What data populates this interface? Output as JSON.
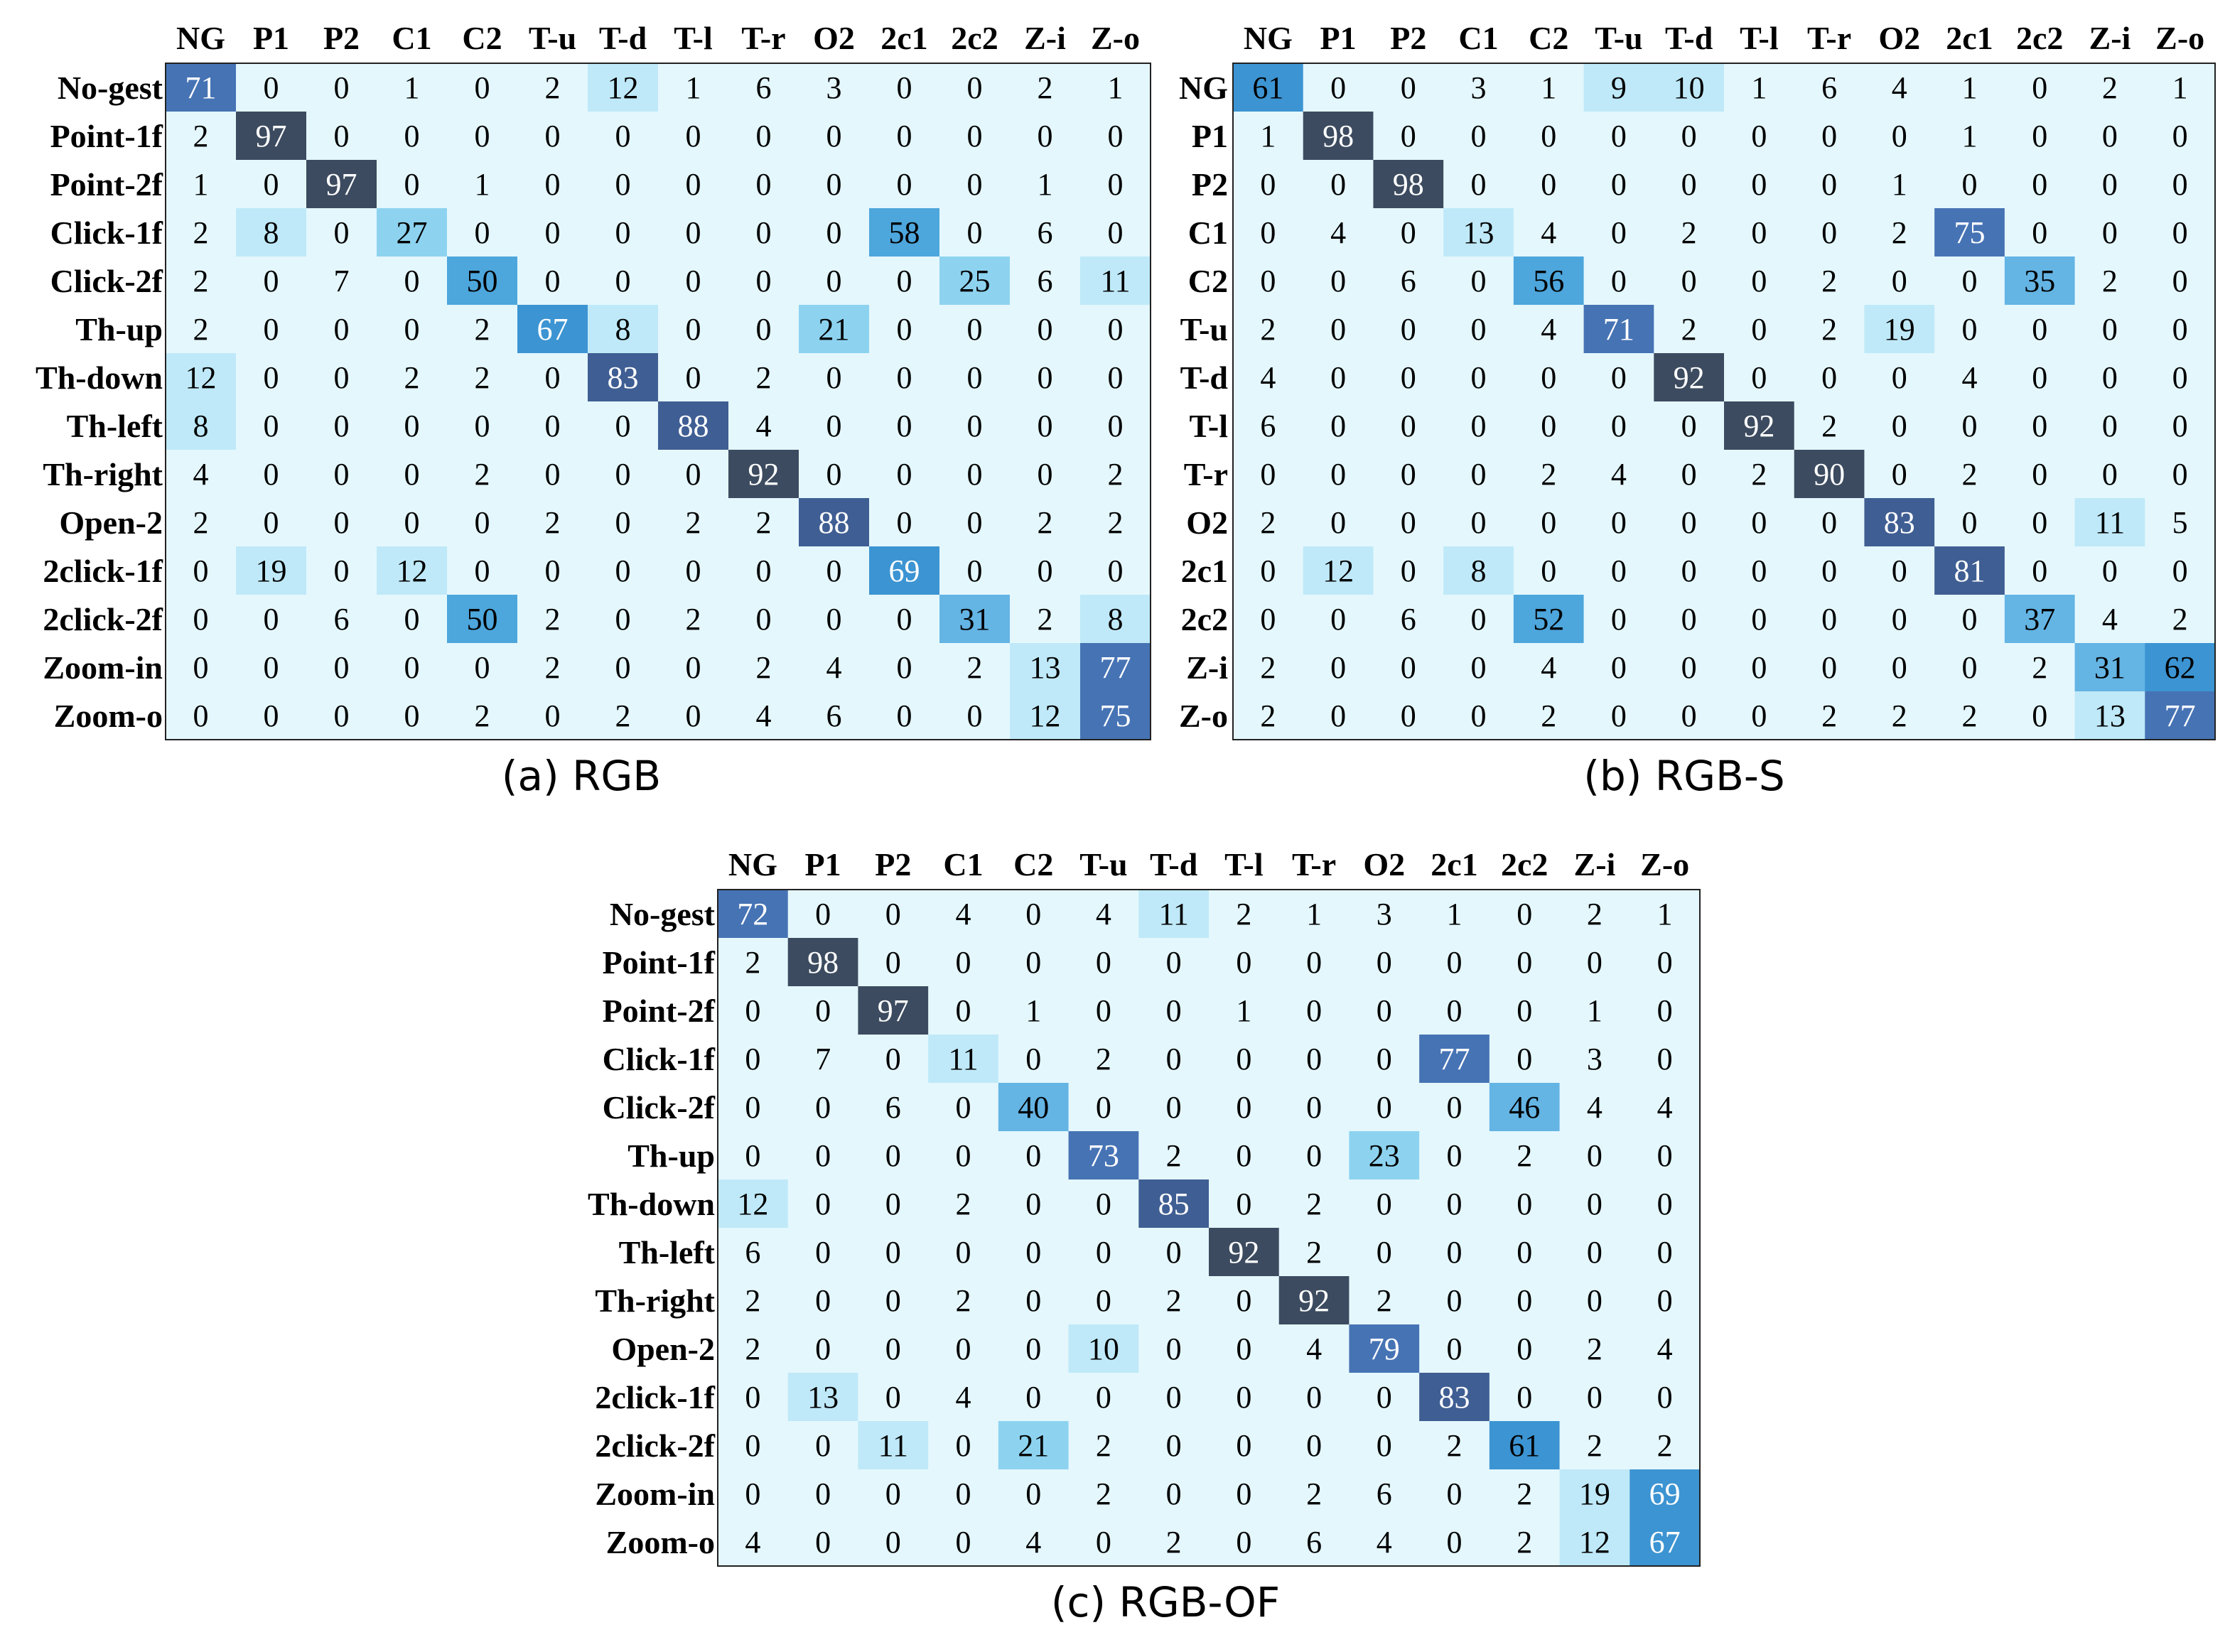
{
  "chart_data": [
    {
      "type": "heatmap",
      "caption": "(a) RGB",
      "col_labels": [
        "NG",
        "P1",
        "P2",
        "C1",
        "C2",
        "T-u",
        "T-d",
        "T-l",
        "T-r",
        "O2",
        "2c1",
        "2c2",
        "Z-i",
        "Z-o"
      ],
      "row_labels": [
        "No-gest",
        "Point-1f",
        "Point-2f",
        "Click-1f",
        "Click-2f",
        "Th-up",
        "Th-down",
        "Th-left",
        "Th-right",
        "Open-2",
        "2click-1f",
        "2click-2f",
        "Zoom-in",
        "Zoom-o"
      ],
      "values": [
        [
          71,
          0,
          0,
          1,
          0,
          2,
          12,
          1,
          6,
          3,
          0,
          0,
          2,
          1
        ],
        [
          2,
          97,
          0,
          0,
          0,
          0,
          0,
          0,
          0,
          0,
          0,
          0,
          0,
          0
        ],
        [
          1,
          0,
          97,
          0,
          1,
          0,
          0,
          0,
          0,
          0,
          0,
          0,
          1,
          0
        ],
        [
          2,
          8,
          0,
          27,
          0,
          0,
          0,
          0,
          0,
          0,
          58,
          0,
          6,
          0
        ],
        [
          2,
          0,
          7,
          0,
          50,
          0,
          0,
          0,
          0,
          0,
          0,
          25,
          6,
          11
        ],
        [
          2,
          0,
          0,
          0,
          2,
          67,
          8,
          0,
          0,
          21,
          0,
          0,
          0,
          0
        ],
        [
          12,
          0,
          0,
          2,
          2,
          0,
          83,
          0,
          2,
          0,
          0,
          0,
          0,
          0
        ],
        [
          8,
          0,
          0,
          0,
          0,
          0,
          0,
          88,
          4,
          0,
          0,
          0,
          0,
          0
        ],
        [
          4,
          0,
          0,
          0,
          2,
          0,
          0,
          0,
          92,
          0,
          0,
          0,
          0,
          2
        ],
        [
          2,
          0,
          0,
          0,
          0,
          2,
          0,
          2,
          2,
          88,
          0,
          0,
          2,
          2
        ],
        [
          0,
          19,
          0,
          12,
          0,
          0,
          0,
          0,
          0,
          0,
          69,
          0,
          0,
          0
        ],
        [
          0,
          0,
          6,
          0,
          50,
          2,
          0,
          2,
          0,
          0,
          0,
          31,
          2,
          8
        ],
        [
          0,
          0,
          0,
          0,
          0,
          2,
          0,
          0,
          2,
          4,
          0,
          2,
          13,
          77
        ],
        [
          0,
          0,
          0,
          0,
          2,
          0,
          2,
          0,
          4,
          6,
          0,
          0,
          12,
          75
        ]
      ]
    },
    {
      "type": "heatmap",
      "caption": "(b) RGB-S",
      "col_labels": [
        "NG",
        "P1",
        "P2",
        "C1",
        "C2",
        "T-u",
        "T-d",
        "T-l",
        "T-r",
        "O2",
        "2c1",
        "2c2",
        "Z-i",
        "Z-o"
      ],
      "row_labels": [
        "NG",
        "P1",
        "P2",
        "C1",
        "C2",
        "T-u",
        "T-d",
        "T-l",
        "T-r",
        "O2",
        "2c1",
        "2c2",
        "Z-i",
        "Z-o"
      ],
      "values": [
        [
          61,
          0,
          0,
          3,
          1,
          9,
          10,
          1,
          6,
          4,
          1,
          0,
          2,
          1
        ],
        [
          1,
          98,
          0,
          0,
          0,
          0,
          0,
          0,
          0,
          0,
          1,
          0,
          0,
          0
        ],
        [
          0,
          0,
          98,
          0,
          0,
          0,
          0,
          0,
          0,
          1,
          0,
          0,
          0,
          0
        ],
        [
          0,
          4,
          0,
          13,
          4,
          0,
          2,
          0,
          0,
          2,
          75,
          0,
          0,
          0
        ],
        [
          0,
          0,
          6,
          0,
          56,
          0,
          0,
          0,
          2,
          0,
          0,
          35,
          2,
          0
        ],
        [
          2,
          0,
          0,
          0,
          4,
          71,
          2,
          0,
          2,
          19,
          0,
          0,
          0,
          0
        ],
        [
          4,
          0,
          0,
          0,
          0,
          0,
          92,
          0,
          0,
          0,
          4,
          0,
          0,
          0
        ],
        [
          6,
          0,
          0,
          0,
          0,
          0,
          0,
          92,
          2,
          0,
          0,
          0,
          0,
          0
        ],
        [
          0,
          0,
          0,
          0,
          2,
          4,
          0,
          2,
          90,
          0,
          2,
          0,
          0,
          0
        ],
        [
          2,
          0,
          0,
          0,
          0,
          0,
          0,
          0,
          0,
          83,
          0,
          0,
          11,
          5
        ],
        [
          0,
          12,
          0,
          8,
          0,
          0,
          0,
          0,
          0,
          0,
          81,
          0,
          0,
          0
        ],
        [
          0,
          0,
          6,
          0,
          52,
          0,
          0,
          0,
          0,
          0,
          0,
          37,
          4,
          2
        ],
        [
          2,
          0,
          0,
          0,
          4,
          0,
          0,
          0,
          0,
          0,
          0,
          2,
          31,
          62
        ],
        [
          2,
          0,
          0,
          0,
          2,
          0,
          0,
          0,
          2,
          2,
          2,
          0,
          13,
          77
        ]
      ]
    },
    {
      "type": "heatmap",
      "caption": "(c) RGB-OF",
      "col_labels": [
        "NG",
        "P1",
        "P2",
        "C1",
        "C2",
        "T-u",
        "T-d",
        "T-l",
        "T-r",
        "O2",
        "2c1",
        "2c2",
        "Z-i",
        "Z-o"
      ],
      "row_labels": [
        "No-gest",
        "Point-1f",
        "Point-2f",
        "Click-1f",
        "Click-2f",
        "Th-up",
        "Th-down",
        "Th-left",
        "Th-right",
        "Open-2",
        "2click-1f",
        "2click-2f",
        "Zoom-in",
        "Zoom-o"
      ],
      "values": [
        [
          72,
          0,
          0,
          4,
          0,
          4,
          11,
          2,
          1,
          3,
          1,
          0,
          2,
          1
        ],
        [
          2,
          98,
          0,
          0,
          0,
          0,
          0,
          0,
          0,
          0,
          0,
          0,
          0,
          0
        ],
        [
          0,
          0,
          97,
          0,
          1,
          0,
          0,
          1,
          0,
          0,
          0,
          0,
          1,
          0
        ],
        [
          0,
          7,
          0,
          11,
          0,
          2,
          0,
          0,
          0,
          0,
          77,
          0,
          3,
          0
        ],
        [
          0,
          0,
          6,
          0,
          40,
          0,
          0,
          0,
          0,
          0,
          0,
          46,
          4,
          4
        ],
        [
          0,
          0,
          0,
          0,
          0,
          73,
          2,
          0,
          0,
          23,
          0,
          2,
          0,
          0
        ],
        [
          12,
          0,
          0,
          2,
          0,
          0,
          85,
          0,
          2,
          0,
          0,
          0,
          0,
          0
        ],
        [
          6,
          0,
          0,
          0,
          0,
          0,
          0,
          92,
          2,
          0,
          0,
          0,
          0,
          0
        ],
        [
          2,
          0,
          0,
          2,
          0,
          0,
          2,
          0,
          92,
          2,
          0,
          0,
          0,
          0
        ],
        [
          2,
          0,
          0,
          0,
          0,
          10,
          0,
          0,
          4,
          79,
          0,
          0,
          2,
          4
        ],
        [
          0,
          13,
          0,
          4,
          0,
          0,
          0,
          0,
          0,
          0,
          83,
          0,
          0,
          0
        ],
        [
          0,
          0,
          11,
          0,
          21,
          2,
          0,
          0,
          0,
          0,
          2,
          61,
          2,
          2
        ],
        [
          0,
          0,
          0,
          0,
          0,
          2,
          0,
          0,
          2,
          6,
          0,
          2,
          19,
          69
        ],
        [
          4,
          0,
          0,
          0,
          4,
          0,
          2,
          0,
          6,
          4,
          0,
          2,
          12,
          67
        ]
      ]
    }
  ]
}
